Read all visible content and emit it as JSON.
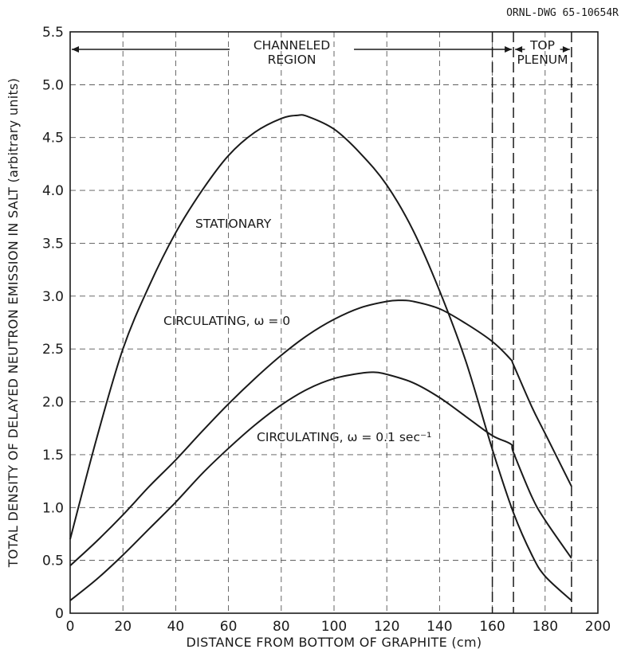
{
  "drawing_number": "ORNL-DWG 65-10654R",
  "chart_data": {
    "type": "line",
    "xlabel": "DISTANCE FROM BOTTOM OF GRAPHITE (cm)",
    "ylabel": "TOTAL DENSITY OF DELAYED NEUTRON EMISSION IN SALT (arbitrary units)",
    "xlim": [
      0,
      200
    ],
    "ylim": [
      0,
      5.5
    ],
    "x_ticks": [
      "0",
      "20",
      "40",
      "60",
      "80",
      "100",
      "120",
      "140",
      "160",
      "180",
      "200"
    ],
    "y_ticks": [
      "0",
      "0.5",
      "1.0",
      "1.5",
      "2.0",
      "2.5",
      "3.0",
      "3.5",
      "4.0",
      "4.5",
      "5.0",
      "5.5"
    ],
    "grid": true,
    "regions": [
      {
        "label_lines": [
          "CHANNELED",
          "REGION"
        ],
        "from": 0,
        "to": 168
      },
      {
        "label_lines": [
          "TOP",
          "PLENUM"
        ],
        "from": 168,
        "to": 190
      }
    ],
    "region_boundaries": [
      160,
      168,
      190
    ],
    "series": [
      {
        "label": "STATIONARY",
        "x": [
          0,
          10,
          20,
          30,
          40,
          50,
          60,
          70,
          80,
          86,
          90,
          100,
          110,
          120,
          130,
          140,
          150,
          160,
          168,
          175,
          180,
          190
        ],
        "y": [
          0.7,
          1.65,
          2.5,
          3.1,
          3.6,
          4.0,
          4.33,
          4.55,
          4.68,
          4.71,
          4.7,
          4.58,
          4.35,
          4.05,
          3.62,
          3.05,
          2.38,
          1.55,
          0.95,
          0.55,
          0.35,
          0.12
        ]
      },
      {
        "label": "CIRCULATING, ω = 0",
        "x": [
          0,
          10,
          20,
          30,
          40,
          50,
          60,
          70,
          80,
          90,
          100,
          110,
          120,
          125,
          130,
          140,
          150,
          160,
          167,
          168,
          175,
          180,
          190
        ],
        "y": [
          0.45,
          0.68,
          0.93,
          1.2,
          1.45,
          1.72,
          1.98,
          2.22,
          2.44,
          2.63,
          2.78,
          2.89,
          2.95,
          2.96,
          2.95,
          2.88,
          2.74,
          2.57,
          2.4,
          2.35,
          1.95,
          1.7,
          1.2
        ]
      },
      {
        "label": "CIRCULATING, ω = 0.1 sec⁻¹",
        "x": [
          0,
          10,
          20,
          30,
          40,
          50,
          60,
          70,
          80,
          90,
          100,
          110,
          115,
          120,
          130,
          140,
          150,
          160,
          167,
          168,
          175,
          180,
          190
        ],
        "y": [
          0.12,
          0.32,
          0.55,
          0.8,
          1.05,
          1.32,
          1.56,
          1.78,
          1.97,
          2.12,
          2.22,
          2.27,
          2.28,
          2.26,
          2.18,
          2.04,
          1.86,
          1.68,
          1.6,
          1.52,
          1.1,
          0.88,
          0.52
        ]
      }
    ]
  }
}
